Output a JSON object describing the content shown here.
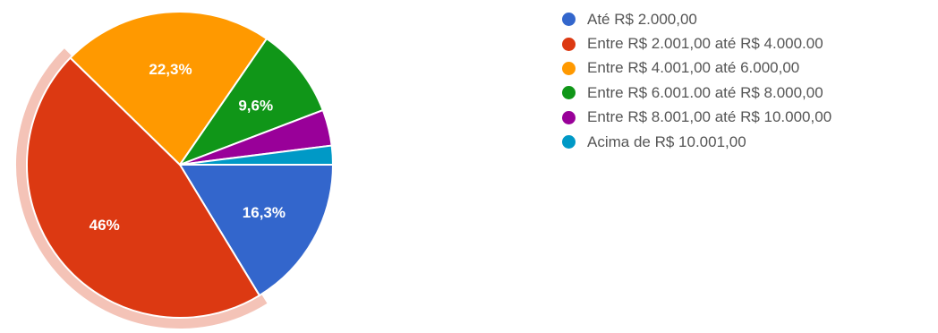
{
  "chart_data": {
    "type": "pie",
    "title": "",
    "start": "right",
    "direction": "clockwise",
    "highlighted_slice": 1,
    "slices": [
      {
        "label": "Até R$ 2.000,00",
        "value": 16.3,
        "data_label": "16,3%",
        "color": "#3366cc"
      },
      {
        "label": "Entre R$ 2.001,00 até R$ 4.000.00",
        "value": 46.0,
        "data_label": "46%",
        "color": "#dc3912"
      },
      {
        "label": "Entre R$ 4.001,00 até 6.000,00",
        "value": 22.3,
        "data_label": "22,3%",
        "color": "#ff9900"
      },
      {
        "label": "Entre R$ 6.001.00 até R$ 8.000,00",
        "value": 9.6,
        "data_label": "9,6%",
        "color": "#109618"
      },
      {
        "label": "Entre R$ 8.001,00 até R$ 10.000,00",
        "value": 3.8,
        "data_label": "",
        "color": "#990099"
      },
      {
        "label": "Acima de R$ 10.001,00",
        "value": 2.0,
        "data_label": "",
        "color": "#0099c6"
      }
    ],
    "legend_position": "right"
  }
}
